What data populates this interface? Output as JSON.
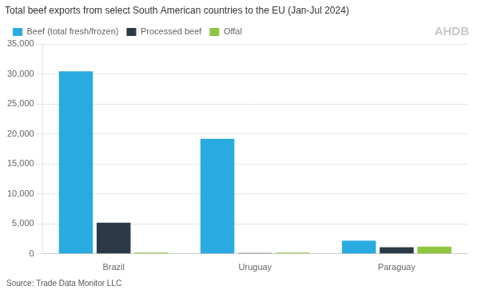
{
  "chart_data": {
    "type": "bar",
    "title": "Total beef exports from select South American countries to the EU (Jan-Jul 2024)",
    "categories": [
      "Brazil",
      "Uruguay",
      "Paraguay"
    ],
    "series": [
      {
        "name": "Beef (total fresh/frozen)",
        "color": "#29ABE2",
        "values": [
          30500,
          19200,
          2200
        ]
      },
      {
        "name": "Processed beef",
        "color": "#2C3A47",
        "values": [
          5200,
          150,
          1100
        ]
      },
      {
        "name": "Offal",
        "color": "#8DC63F",
        "values": [
          200,
          200,
          1200
        ]
      }
    ],
    "ylim": [
      0,
      35000
    ],
    "yticks": [
      0,
      {
        "value": 5000,
        "label": "5,000"
      },
      {
        "value": 10000,
        "label": "10,000"
      },
      {
        "value": 15000,
        "label": "15,000"
      },
      {
        "value": 20000,
        "label": "20,000"
      },
      {
        "value": 25000,
        "label": "25,000"
      },
      {
        "value": 30000,
        "label": "30,000"
      },
      {
        "value": 35000,
        "label": "35,000"
      }
    ],
    "grid": true,
    "legend": "top left",
    "annotations": [
      "Source: Trade Data Monitor LLC",
      "AHDB"
    ]
  }
}
